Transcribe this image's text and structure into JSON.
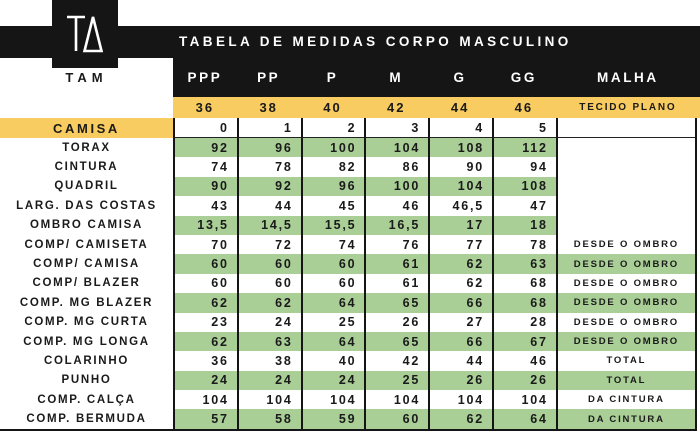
{
  "brand": {
    "logo_monogram": "TA",
    "size_label": "TAM"
  },
  "header": {
    "title": "TABELA DE MEDIDAS CORPO MASCULINO",
    "size_columns": [
      "PPP",
      "PP",
      "P",
      "M",
      "G",
      "GG"
    ],
    "malha_label": "MALHA",
    "size_numbers": [
      "36",
      "38",
      "40",
      "42",
      "44",
      "46"
    ],
    "malha_value": "TECIDO PLANO"
  },
  "camisa_row": {
    "label": "CAMISA",
    "values": [
      "0",
      "1",
      "2",
      "3",
      "4",
      "5"
    ],
    "malha": ""
  },
  "rows": [
    {
      "label": "TORAX",
      "values": [
        "92",
        "96",
        "100",
        "104",
        "108",
        "112"
      ],
      "malha": "",
      "striped": true
    },
    {
      "label": "CINTURA",
      "values": [
        "74",
        "78",
        "82",
        "86",
        "90",
        "94"
      ],
      "malha": "",
      "striped": false
    },
    {
      "label": "QUADRIL",
      "values": [
        "90",
        "92",
        "96",
        "100",
        "104",
        "108"
      ],
      "malha": "",
      "striped": true
    },
    {
      "label": "LARG. DAS COSTAS",
      "values": [
        "43",
        "44",
        "45",
        "46",
        "46,5",
        "47"
      ],
      "malha": "",
      "striped": false
    },
    {
      "label": "OMBRO CAMISA",
      "values": [
        "13,5",
        "14,5",
        "15,5",
        "16,5",
        "17",
        "18"
      ],
      "malha": "",
      "striped": true
    },
    {
      "label": "COMP/ CAMISETA",
      "values": [
        "70",
        "72",
        "74",
        "76",
        "77",
        "78"
      ],
      "malha": "DESDE O OMBRO",
      "striped": false
    },
    {
      "label": "COMP/ CAMISA",
      "values": [
        "60",
        "60",
        "60",
        "61",
        "62",
        "63"
      ],
      "malha": "DESDE O OMBRO",
      "striped": true
    },
    {
      "label": "COMP/ BLAZER",
      "values": [
        "60",
        "60",
        "60",
        "61",
        "62",
        "68"
      ],
      "malha": "DESDE O OMBRO",
      "striped": false
    },
    {
      "label": "COMP. MG BLAZER",
      "values": [
        "62",
        "62",
        "64",
        "65",
        "66",
        "68"
      ],
      "malha": "DESDE O OMBRO",
      "striped": true
    },
    {
      "label": "COMP. MG CURTA",
      "values": [
        "23",
        "24",
        "25",
        "26",
        "27",
        "28"
      ],
      "malha": "DESDE O OMBRO",
      "striped": false
    },
    {
      "label": "COMP. MG LONGA",
      "values": [
        "62",
        "63",
        "64",
        "65",
        "66",
        "67"
      ],
      "malha": "DESDE O OMBRO",
      "striped": true
    },
    {
      "label": "COLARINHO",
      "values": [
        "36",
        "38",
        "40",
        "42",
        "44",
        "46"
      ],
      "malha": "TOTAL",
      "striped": false
    },
    {
      "label": "PUNHO",
      "values": [
        "24",
        "24",
        "24",
        "25",
        "26",
        "26"
      ],
      "malha": "TOTAL",
      "striped": true
    },
    {
      "label": "COMP. CALÇA",
      "values": [
        "104",
        "104",
        "104",
        "104",
        "104",
        "104"
      ],
      "malha": "DA CINTURA",
      "striped": false
    },
    {
      "label": "COMP. BERMUDA",
      "values": [
        "57",
        "58",
        "59",
        "60",
        "62",
        "64"
      ],
      "malha": "DA CINTURA",
      "striped": true
    }
  ],
  "colors": {
    "header_black": "#151515",
    "accent_yellow": "#F8CC60",
    "stripe_green": "#A9CE96"
  }
}
